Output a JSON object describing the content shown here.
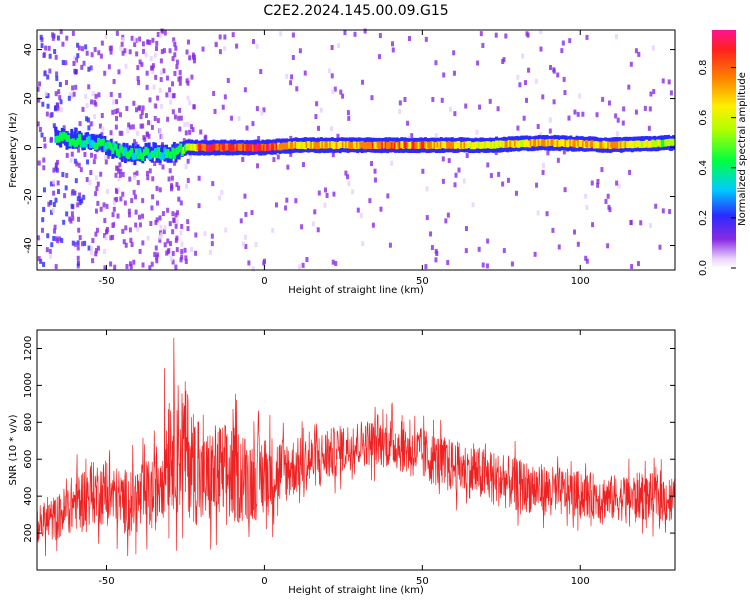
{
  "title": "C2E2.2024.145.00.09.G15",
  "chart_data": [
    {
      "type": "heatmap",
      "xlabel": "Height of straight line (km)",
      "ylabel": "Frequency (Hz)",
      "xlim": [
        -72,
        130
      ],
      "ylim": [
        -50,
        48
      ],
      "xticks": [
        "-50",
        "0",
        "50",
        "100"
      ],
      "yticks": [
        "-40",
        "-20",
        "0",
        "20",
        "40"
      ],
      "colorbar": {
        "label": "Normalized spectral amplitude",
        "range": [
          0,
          0.95
        ],
        "ticks": [
          "0.0",
          "0.2",
          "0.4",
          "0.6",
          "0.8"
        ]
      },
      "ridge": {
        "x": [
          -65,
          -60,
          -55,
          -50,
          -45,
          -40,
          -35,
          -30,
          -25,
          -20,
          -10,
          0,
          10,
          30,
          50,
          70,
          90,
          110,
          130
        ],
        "frequency": [
          4,
          3,
          2,
          1,
          -2,
          -3,
          -2,
          -3,
          0,
          0,
          0,
          0,
          1,
          1,
          1,
          1,
          2,
          1,
          2
        ],
        "amplitude": [
          0.35,
          0.4,
          0.35,
          0.35,
          0.4,
          0.4,
          0.35,
          0.4,
          0.45,
          0.85,
          0.9,
          0.9,
          0.7,
          0.75,
          0.8,
          0.6,
          0.75,
          0.7,
          0.5
        ]
      },
      "grid": false
    },
    {
      "type": "line",
      "xlabel": "Height of straight line (km)",
      "ylabel": "SNR (10 * v/v)",
      "xlim": [
        -72,
        130
      ],
      "ylim": [
        0,
        1300
      ],
      "xticks": [
        "-50",
        "0",
        "50",
        "100"
      ],
      "yticks": [
        "200",
        "400",
        "600",
        "800",
        "1000",
        "1200"
      ],
      "series_color": "#ee2222",
      "envelope": {
        "x": [
          -72,
          -65,
          -60,
          -55,
          -50,
          -45,
          -40,
          -35,
          -30,
          -25,
          -20,
          -15,
          -10,
          -5,
          0,
          10,
          20,
          30,
          40,
          50,
          60,
          70,
          80,
          90,
          100,
          110,
          120,
          130
        ],
        "low": [
          60,
          80,
          100,
          130,
          120,
          80,
          60,
          60,
          100,
          60,
          40,
          30,
          60,
          100,
          120,
          300,
          380,
          480,
          460,
          380,
          320,
          260,
          220,
          200,
          200,
          180,
          180,
          160
        ],
        "high": [
          420,
          500,
          640,
          700,
          720,
          660,
          700,
          760,
          1280,
          1270,
          900,
          1000,
          980,
          880,
          900,
          820,
          860,
          900,
          920,
          870,
          800,
          760,
          700,
          660,
          620,
          600,
          620,
          600
        ]
      },
      "grid": false
    }
  ],
  "colors": {
    "snr_line": "#ee2222",
    "axes": "#000000",
    "background": "#ffffff"
  }
}
